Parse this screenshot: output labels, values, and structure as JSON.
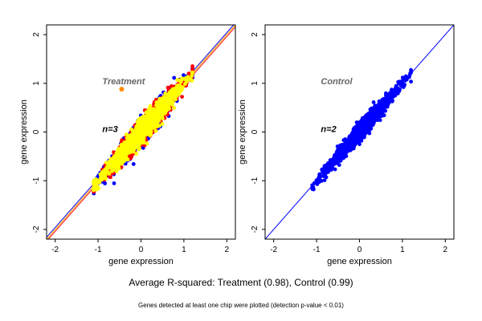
{
  "captions": {
    "summary": "Average R-squared: Treatment (0.98), Control (0.99)",
    "footnote": "Genes detected at least one chip were plotted (detection p-value < 0.01)"
  },
  "chart_data": [
    {
      "type": "scatter",
      "xlabel": "gene expression",
      "ylabel": "gene expression",
      "xlim": [
        -2.2,
        2.2
      ],
      "ylim": [
        -2.2,
        2.2
      ],
      "x_ticks": [
        -2,
        -1,
        0,
        1,
        2
      ],
      "y_ticks": [
        -2,
        -1,
        0,
        1,
        2
      ],
      "grid": false,
      "annotations": [
        {
          "text": "Treatment",
          "x": -0.9,
          "y": 0.98,
          "color": "#666666"
        },
        {
          "text": "n=3",
          "x": -0.9,
          "y": 0.0,
          "color": "#000000"
        }
      ],
      "outlier_point": {
        "x": -0.45,
        "y": 0.88,
        "color": "#ff8c00"
      },
      "point_cloud": {
        "x_range": [
          -1.1,
          1.2
        ],
        "slope": 1.0,
        "spread": 0.12,
        "colors": [
          "#0000ff",
          "#ff0000",
          "#ffff00"
        ]
      },
      "reference_lines": [
        {
          "slope": 1.0,
          "intercept": -0.04,
          "color": "#ff0000"
        },
        {
          "slope": 1.0,
          "intercept": 0.0,
          "color": "#ffa500"
        },
        {
          "slope": 1.0,
          "intercept": 0.04,
          "color": "#0000ff"
        }
      ]
    },
    {
      "type": "scatter",
      "xlabel": "gene expression",
      "ylabel": "gene expression",
      "xlim": [
        -2.2,
        2.2
      ],
      "ylim": [
        -2.2,
        2.2
      ],
      "x_ticks": [
        -2,
        -1,
        0,
        1,
        2
      ],
      "y_ticks": [
        -2,
        -1,
        0,
        1,
        2
      ],
      "grid": false,
      "annotations": [
        {
          "text": "Control",
          "x": -0.9,
          "y": 0.98,
          "color": "#666666"
        },
        {
          "text": "n=2",
          "x": -0.9,
          "y": 0.0,
          "color": "#000000"
        }
      ],
      "point_cloud": {
        "x_range": [
          -1.1,
          1.2
        ],
        "slope": 1.0,
        "spread": 0.09,
        "colors": [
          "#0000ff"
        ]
      },
      "reference_lines": [
        {
          "slope": 1.0,
          "intercept": 0.0,
          "color": "#0000ff"
        }
      ]
    }
  ]
}
